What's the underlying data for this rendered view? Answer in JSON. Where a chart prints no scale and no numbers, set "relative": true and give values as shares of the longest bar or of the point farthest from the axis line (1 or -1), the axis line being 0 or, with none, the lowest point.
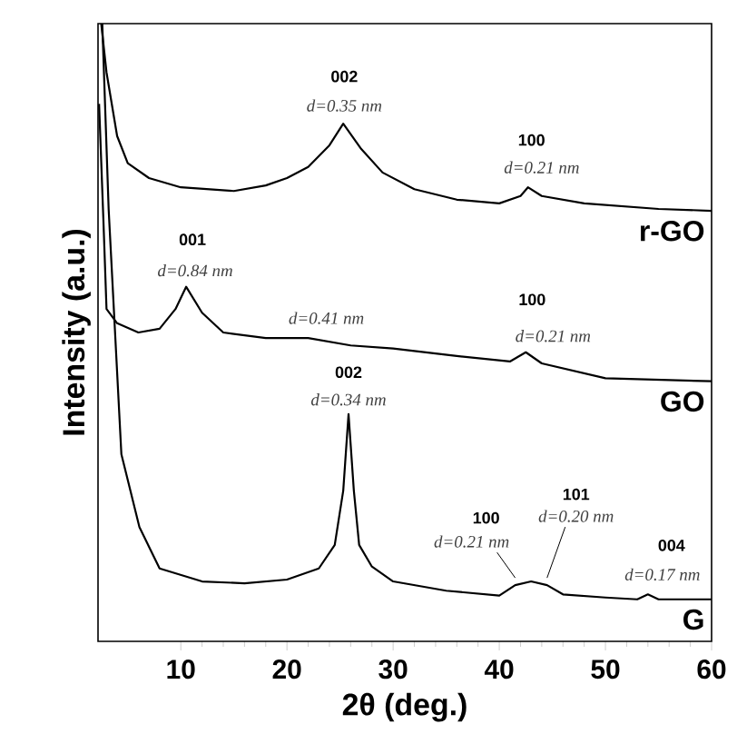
{
  "chart_data": {
    "type": "line",
    "relative": true,
    "xlabel": "2θ (deg.)",
    "ylabel": "Intensity (a.u.)",
    "xlim": [
      2.2,
      60
    ],
    "xticks": [
      10,
      20,
      30,
      40,
      50,
      60
    ],
    "tick_labels": "x",
    "grid": false,
    "marker": "none",
    "line_style": "solid",
    "series": [
      {
        "name": "r-GO",
        "color": "#000000",
        "x": [
          2.5,
          3,
          4,
          5,
          7,
          10,
          15,
          18,
          20,
          22,
          24,
          25.3,
          27,
          29,
          32,
          36,
          40,
          42,
          42.7,
          44,
          48,
          55,
          60
        ],
        "values": [
          1.0,
          0.921,
          0.818,
          0.774,
          0.75,
          0.735,
          0.729,
          0.738,
          0.75,
          0.768,
          0.803,
          0.838,
          0.797,
          0.759,
          0.732,
          0.715,
          0.709,
          0.721,
          0.735,
          0.721,
          0.709,
          0.7,
          0.697
        ]
      },
      {
        "name": "GO",
        "color": "#000000",
        "x": [
          2.3,
          2.7,
          3,
          4,
          6,
          8,
          9.5,
          10.5,
          12,
          14,
          18,
          22,
          26,
          30,
          36,
          41,
          42.5,
          44,
          50,
          60
        ],
        "values": [
          0.87,
          0.685,
          0.538,
          0.515,
          0.5,
          0.506,
          0.538,
          0.574,
          0.532,
          0.5,
          0.491,
          0.491,
          0.479,
          0.474,
          0.462,
          0.453,
          0.468,
          0.45,
          0.426,
          0.421
        ]
      },
      {
        "name": "G",
        "color": "#000000",
        "x": [
          2.6,
          3.2,
          4.4,
          6.1,
          8,
          12,
          16,
          20,
          23,
          24.5,
          25.3,
          25.8,
          26.3,
          26.8,
          28,
          30,
          35,
          40,
          41.5,
          43,
          44.5,
          46,
          50,
          53,
          54,
          55,
          60
        ],
        "values": [
          1.0,
          0.7,
          0.303,
          0.185,
          0.118,
          0.097,
          0.094,
          0.1,
          0.118,
          0.156,
          0.244,
          0.368,
          0.244,
          0.156,
          0.121,
          0.097,
          0.082,
          0.074,
          0.091,
          0.097,
          0.091,
          0.076,
          0.071,
          0.068,
          0.076,
          0.068,
          0.068
        ]
      }
    ],
    "annotations": [
      {
        "text": "002",
        "x": 25.3,
        "y": 0.838
      },
      {
        "text": "d=0.35 nm",
        "x": 25.3,
        "y": 0.838
      },
      {
        "text": "100",
        "x": 42.7,
        "y": 0.735
      },
      {
        "text": "d=0.21 nm",
        "x": 42.7,
        "y": 0.735
      },
      {
        "text": "001",
        "x": 10.5,
        "y": 0.574
      },
      {
        "text": "d=0.84 nm",
        "x": 10.5,
        "y": 0.574
      },
      {
        "text": "100",
        "x": 42.5,
        "y": 0.468
      },
      {
        "text": "d=0.21 nm",
        "x": 42.5,
        "y": 0.468
      },
      {
        "text": "002",
        "x": 25.8,
        "y": 0.368
      },
      {
        "text": "d=0.34 nm",
        "x": 25.8,
        "y": 0.368
      },
      "100",
      {
        "text": "d=0.21 nm",
        "x": 41.5,
        "y": 0.091
      },
      "101",
      {
        "text": "d=0.20 nm",
        "x": 44.5,
        "y": 0.091
      },
      {
        "text": "004",
        "x": 54,
        "y": 0.076
      },
      {
        "text": "d=0.17 nm",
        "x": 54,
        "y": 0.076
      },
      {
        "text": "d=0.41 nm",
        "x": 22,
        "y": 0.491
      }
    ]
  }
}
